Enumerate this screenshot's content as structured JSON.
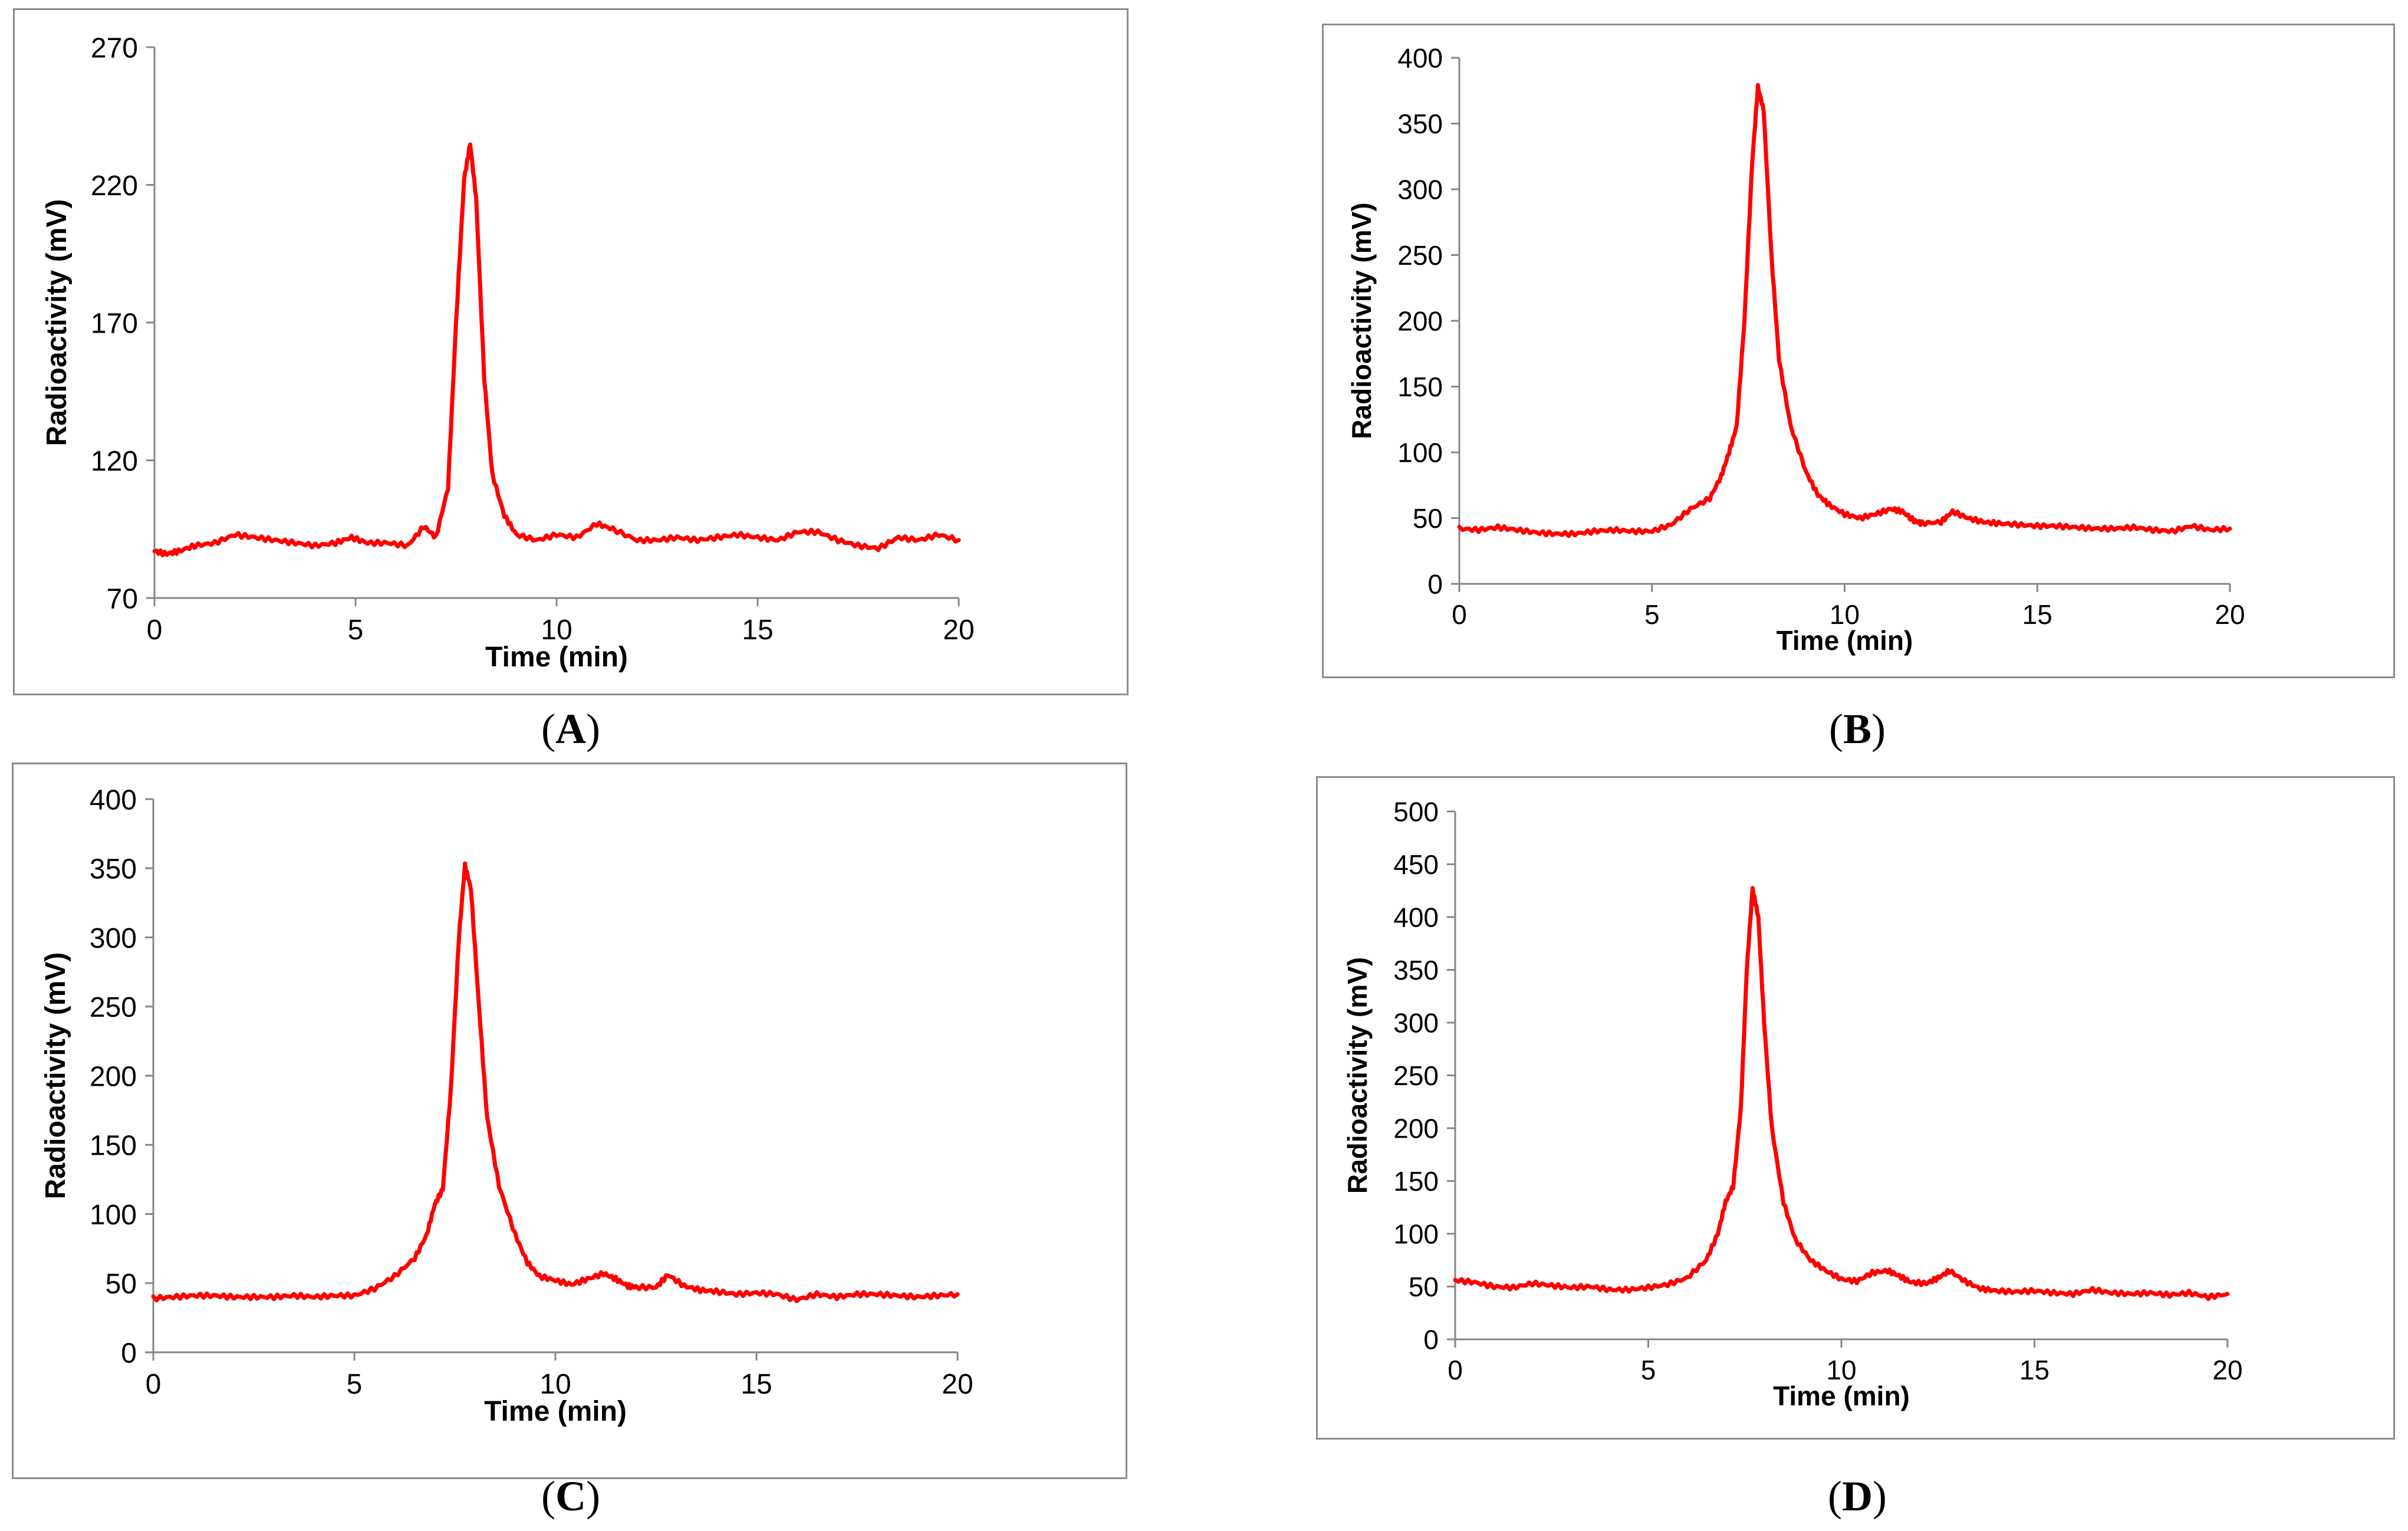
{
  "figure": {
    "line_color": "#ff0000",
    "axis_color": "#868686",
    "frame_color": "#8c8c8c"
  },
  "chart_data": [
    {
      "panel": "A",
      "type": "line",
      "xlabel": "Time (min)",
      "ylabel": "Radioactivity (mV)",
      "xlim": [
        0,
        20
      ],
      "ylim": [
        70,
        270
      ],
      "xticks": [
        0,
        5,
        10,
        15,
        20
      ],
      "yticks": [
        70,
        120,
        170,
        220,
        270
      ],
      "grid": false,
      "legend": "none",
      "series": [
        {
          "x": [
            0,
            0.3,
            0.6,
            1.0,
            1.5,
            2.0,
            2.5,
            3.0,
            3.5,
            4.0,
            4.5,
            4.9,
            5.3,
            5.8,
            6.3,
            6.7,
            7.0,
            7.3,
            7.5,
            7.7,
            7.85,
            8.0,
            8.2,
            8.4,
            8.7,
            9.0,
            9.5,
            10.0,
            10.5,
            11.0,
            11.4,
            12.0,
            12.5,
            13.0,
            13.5,
            14.0,
            14.5,
            15.0,
            15.5,
            16.0,
            16.5,
            17.0,
            17.5,
            18.0,
            18.5,
            19.0,
            19.5,
            20.0
          ],
          "y": [
            87,
            86,
            87,
            89,
            90,
            93,
            92,
            91,
            90,
            89,
            90,
            92,
            90,
            90,
            89,
            96,
            92,
            110,
            170,
            222,
            235,
            215,
            150,
            115,
            100,
            93,
            91,
            93,
            92,
            97,
            95,
            91,
            91,
            92,
            91,
            92,
            93,
            92,
            91,
            94,
            94,
            91,
            89,
            88,
            92,
            91,
            93,
            91
          ]
        }
      ]
    },
    {
      "panel": "B",
      "type": "line",
      "xlabel": "Time (min)",
      "ylabel": "Radioactivity (mV)",
      "xlim": [
        0,
        20
      ],
      "ylim": [
        0,
        400
      ],
      "xticks": [
        0,
        5,
        10,
        15,
        20
      ],
      "yticks": [
        0,
        50,
        100,
        150,
        200,
        250,
        300,
        350,
        400
      ],
      "grid": false,
      "legend": "none",
      "series": [
        {
          "x": [
            0,
            0.5,
            1.0,
            1.5,
            2.0,
            2.5,
            3.0,
            3.5,
            4.0,
            4.5,
            5.0,
            5.5,
            6.0,
            6.5,
            6.8,
            7.0,
            7.2,
            7.4,
            7.6,
            7.75,
            7.9,
            8.1,
            8.3,
            8.6,
            9.0,
            9.3,
            9.6,
            10.0,
            10.4,
            10.8,
            11.2,
            11.5,
            11.8,
            12.0,
            12.5,
            12.8,
            13.2,
            13.6,
            14.0,
            14.5,
            15.0,
            15.5,
            16.0,
            16.5,
            17.0,
            17.5,
            18.0,
            18.5,
            19.0,
            19.5,
            20.0
          ],
          "y": [
            42,
            41,
            43,
            41,
            39,
            38,
            38,
            40,
            41,
            40,
            40,
            45,
            57,
            65,
            82,
            100,
            120,
            200,
            320,
            378,
            360,
            250,
            170,
            120,
            85,
            68,
            60,
            53,
            50,
            53,
            57,
            55,
            48,
            46,
            47,
            55,
            50,
            47,
            46,
            45,
            44,
            44,
            43,
            42,
            42,
            43,
            41,
            40,
            44,
            41,
            42
          ]
        }
      ]
    },
    {
      "panel": "C",
      "type": "line",
      "xlabel": "Time (min)",
      "ylabel": "Radioactivity (mV)",
      "xlim": [
        0,
        20
      ],
      "ylim": [
        0,
        400
      ],
      "xticks": [
        0,
        5,
        10,
        15,
        20
      ],
      "yticks": [
        0,
        50,
        100,
        150,
        200,
        250,
        300,
        350,
        400
      ],
      "grid": false,
      "legend": "none",
      "series": [
        {
          "x": [
            0,
            0.5,
            1.0,
            1.5,
            2.0,
            2.5,
            3.0,
            3.5,
            4.0,
            4.5,
            5.0,
            5.5,
            6.0,
            6.5,
            6.8,
            7.0,
            7.2,
            7.4,
            7.6,
            7.75,
            7.9,
            8.1,
            8.3,
            8.6,
            9.0,
            9.3,
            9.6,
            10.0,
            10.4,
            10.8,
            11.2,
            11.5,
            11.8,
            12.0,
            12.5,
            12.8,
            13.2,
            13.6,
            14.0,
            14.5,
            15.0,
            15.5,
            16.0,
            16.5,
            17.0,
            17.5,
            18.0,
            18.5,
            19.0,
            19.5,
            20.0
          ],
          "y": [
            39,
            40,
            41,
            41,
            40,
            40,
            40,
            41,
            40,
            41,
            41,
            46,
            55,
            68,
            85,
            107,
            118,
            190,
            300,
            352,
            335,
            250,
            170,
            120,
            85,
            65,
            55,
            52,
            49,
            53,
            57,
            53,
            48,
            47,
            47,
            56,
            48,
            45,
            44,
            42,
            43,
            42,
            38,
            42,
            40,
            42,
            42,
            41,
            40,
            41,
            42
          ]
        }
      ]
    },
    {
      "panel": "D",
      "type": "line",
      "xlabel": "Time (min)",
      "ylabel": "Radioactivity (mV)",
      "xlim": [
        0,
        20
      ],
      "ylim": [
        0,
        500
      ],
      "xticks": [
        0,
        5,
        10,
        15,
        20
      ],
      "yticks": [
        0,
        50,
        100,
        150,
        200,
        250,
        300,
        350,
        400,
        450,
        500
      ],
      "grid": false,
      "legend": "none",
      "series": [
        {
          "x": [
            0,
            0.5,
            1.0,
            1.5,
            2.0,
            2.5,
            3.0,
            3.5,
            4.0,
            4.5,
            5.0,
            5.5,
            6.0,
            6.5,
            6.8,
            7.0,
            7.2,
            7.4,
            7.55,
            7.7,
            7.85,
            8.0,
            8.2,
            8.5,
            8.8,
            9.2,
            9.6,
            10.0,
            10.4,
            10.8,
            11.2,
            11.5,
            11.8,
            12.2,
            12.5,
            12.8,
            13.2,
            13.6,
            14.0,
            14.5,
            15.0,
            15.5,
            16.0,
            16.5,
            17.0,
            17.5,
            18.0,
            18.5,
            19.0,
            19.5,
            20.0
          ],
          "y": [
            56,
            54,
            50,
            49,
            53,
            51,
            49,
            50,
            47,
            47,
            49,
            52,
            58,
            75,
            100,
            130,
            145,
            220,
            350,
            427,
            400,
            300,
            200,
            130,
            95,
            75,
            65,
            57,
            55,
            63,
            65,
            60,
            54,
            53,
            58,
            65,
            55,
            48,
            46,
            45,
            46,
            44,
            43,
            47,
            44,
            43,
            44,
            42,
            44,
            40,
            43
          ]
        }
      ]
    }
  ],
  "captions": [
    {
      "open": "(",
      "label": "A",
      "close": ")"
    },
    {
      "open": "(",
      "label": "B",
      "close": ")"
    },
    {
      "open": "(",
      "label": "C",
      "close": ")"
    },
    {
      "open": "(",
      "label": "D",
      "close": ")"
    }
  ]
}
